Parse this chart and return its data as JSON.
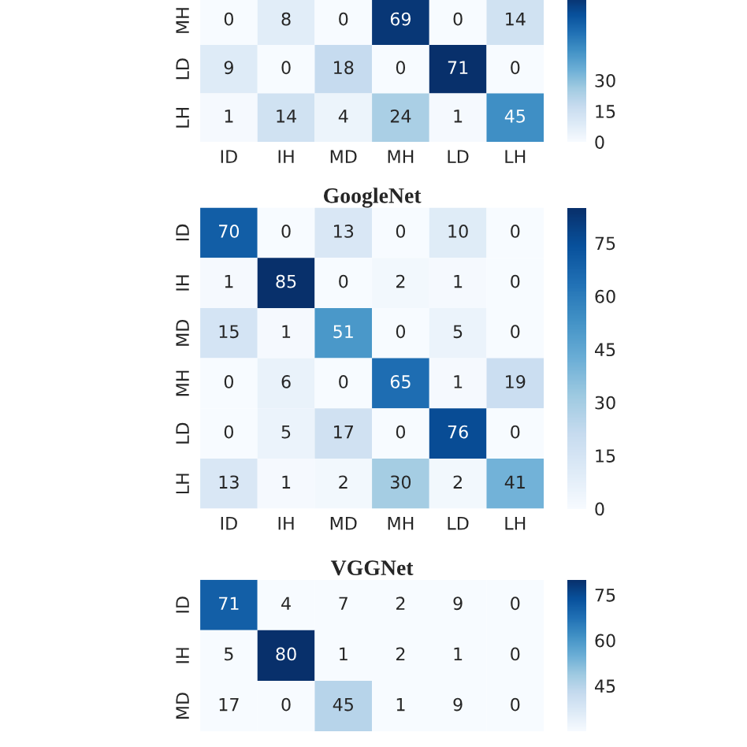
{
  "chart_data": [
    {
      "type": "heatmap",
      "categories": [
        "ID",
        "IH",
        "MD",
        "MH",
        "LD",
        "LH"
      ],
      "y_categories": [
        "MH",
        "LD",
        "LH"
      ],
      "cells": [
        [
          0,
          8,
          0,
          69,
          0,
          14
        ],
        [
          9,
          0,
          18,
          0,
          71,
          0
        ],
        [
          1,
          14,
          4,
          24,
          1,
          45
        ]
      ],
      "clim": [
        0,
        71
      ],
      "cticks": [
        0,
        15,
        30
      ],
      "data_labels": true
    },
    {
      "type": "heatmap",
      "title": "GoogleNet",
      "categories": [
        "ID",
        "IH",
        "MD",
        "MH",
        "LD",
        "LH"
      ],
      "y_categories": [
        "ID",
        "IH",
        "MD",
        "MH",
        "LD",
        "LH"
      ],
      "cells": [
        [
          70,
          0,
          13,
          0,
          10,
          0
        ],
        [
          1,
          85,
          0,
          2,
          1,
          0
        ],
        [
          15,
          1,
          51,
          0,
          5,
          0
        ],
        [
          0,
          6,
          0,
          65,
          1,
          19
        ],
        [
          0,
          5,
          17,
          0,
          76,
          0
        ],
        [
          13,
          1,
          2,
          30,
          2,
          41
        ]
      ],
      "clim": [
        0,
        85
      ],
      "cticks": [
        0,
        15,
        30,
        45,
        60,
        75
      ],
      "data_labels": true
    },
    {
      "type": "heatmap",
      "title": "VGGNet",
      "categories": [
        null,
        null,
        null,
        null,
        null,
        null
      ],
      "y_categories": [
        "ID",
        "IH",
        "MD"
      ],
      "cells": [
        [
          71,
          4,
          7,
          2,
          9,
          0
        ],
        [
          5,
          80,
          1,
          2,
          1,
          0
        ],
        [
          17,
          0,
          45,
          1,
          9,
          0
        ]
      ],
      "clim": [
        30,
        80
      ],
      "cticks": [
        45,
        60,
        75
      ],
      "tick_labels": "y",
      "data_labels": true
    }
  ]
}
